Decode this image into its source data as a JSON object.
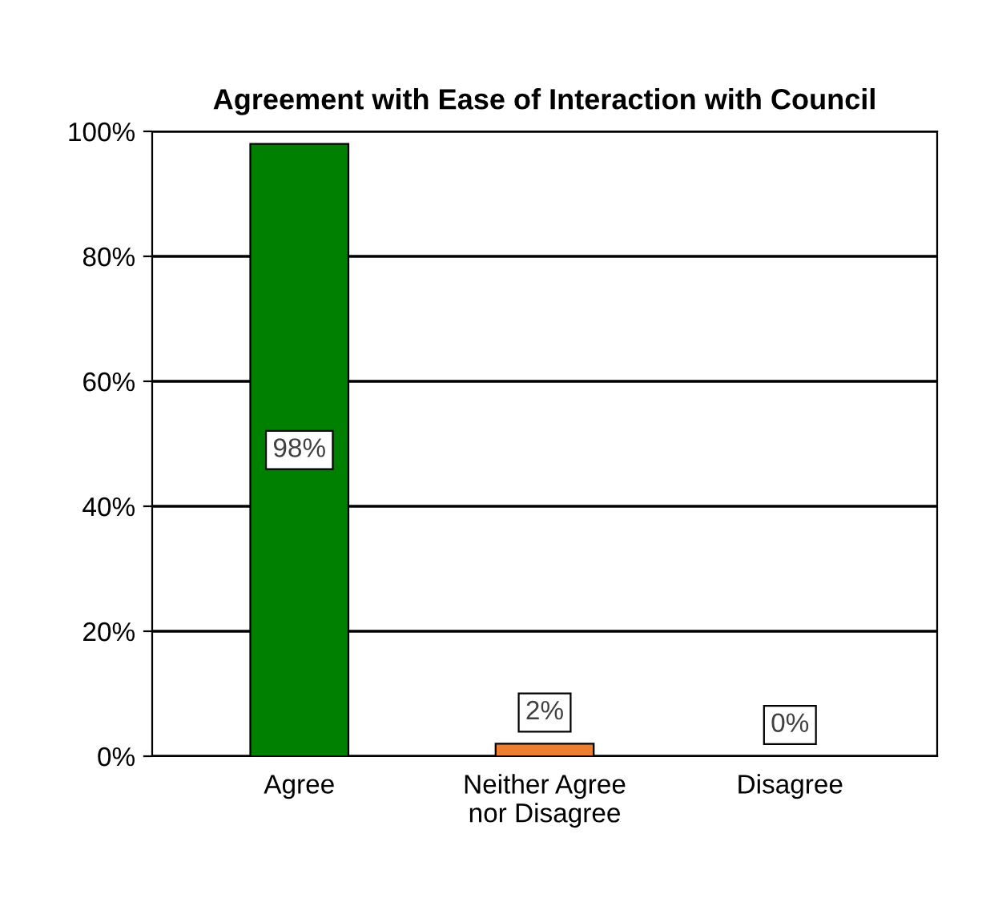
{
  "chart_data": {
    "type": "bar",
    "title": "Agreement with Ease of Interaction with Council",
    "categories": [
      "Agree",
      "Neither Agree nor Disagree",
      "Disagree"
    ],
    "values": [
      98,
      2,
      0
    ],
    "colors": [
      "#008000",
      "#ed7d31",
      "#000000"
    ],
    "value_labels": [
      "98%",
      "2%",
      "0%"
    ],
    "ylim": [
      0,
      100
    ],
    "yticks": [
      {
        "value": 0,
        "label": "0%"
      },
      {
        "value": 20,
        "label": "20%"
      },
      {
        "value": 40,
        "label": "40%"
      },
      {
        "value": 60,
        "label": "60%"
      },
      {
        "value": 80,
        "label": "80%"
      },
      {
        "value": 100,
        "label": "100%"
      }
    ],
    "grid": "y",
    "legend": false
  }
}
